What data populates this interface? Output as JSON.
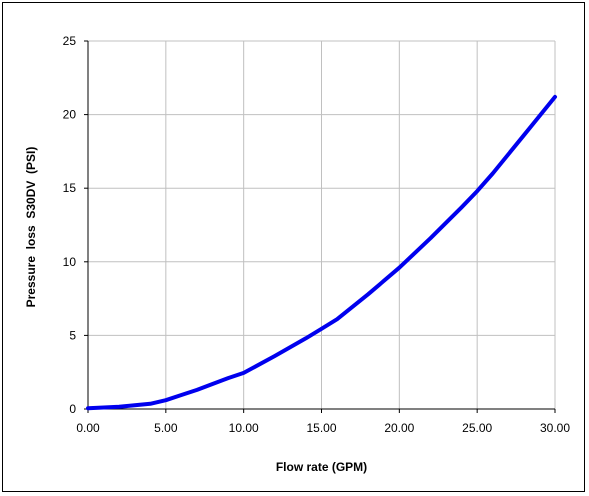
{
  "chart_data": {
    "type": "line",
    "title": "",
    "xlabel": "Flow rate (GPM)",
    "ylabel": "Pressure  loss  S30DV  (PSI)",
    "xlim": [
      0,
      30
    ],
    "ylim": [
      0,
      25
    ],
    "x_ticks": [
      "0.00",
      "5.00",
      "10.00",
      "15.00",
      "20.00",
      "25.00",
      "30.00"
    ],
    "y_ticks": [
      "0",
      "5",
      "10",
      "15",
      "20",
      "25"
    ],
    "grid": true,
    "legend": "none",
    "series": [
      {
        "color": "#0000ee",
        "x": [
          0,
          1,
          2,
          3,
          4,
          5,
          6,
          7,
          8,
          9,
          10,
          12,
          14,
          15,
          16,
          18,
          20,
          22,
          24,
          25,
          26,
          28,
          30
        ],
        "y": [
          0.05,
          0.1,
          0.15,
          0.25,
          0.35,
          0.6,
          0.95,
          1.3,
          1.7,
          2.1,
          2.45,
          3.6,
          4.8,
          5.45,
          6.1,
          7.8,
          9.6,
          11.6,
          13.7,
          14.8,
          16.0,
          18.6,
          21.2
        ]
      }
    ]
  }
}
